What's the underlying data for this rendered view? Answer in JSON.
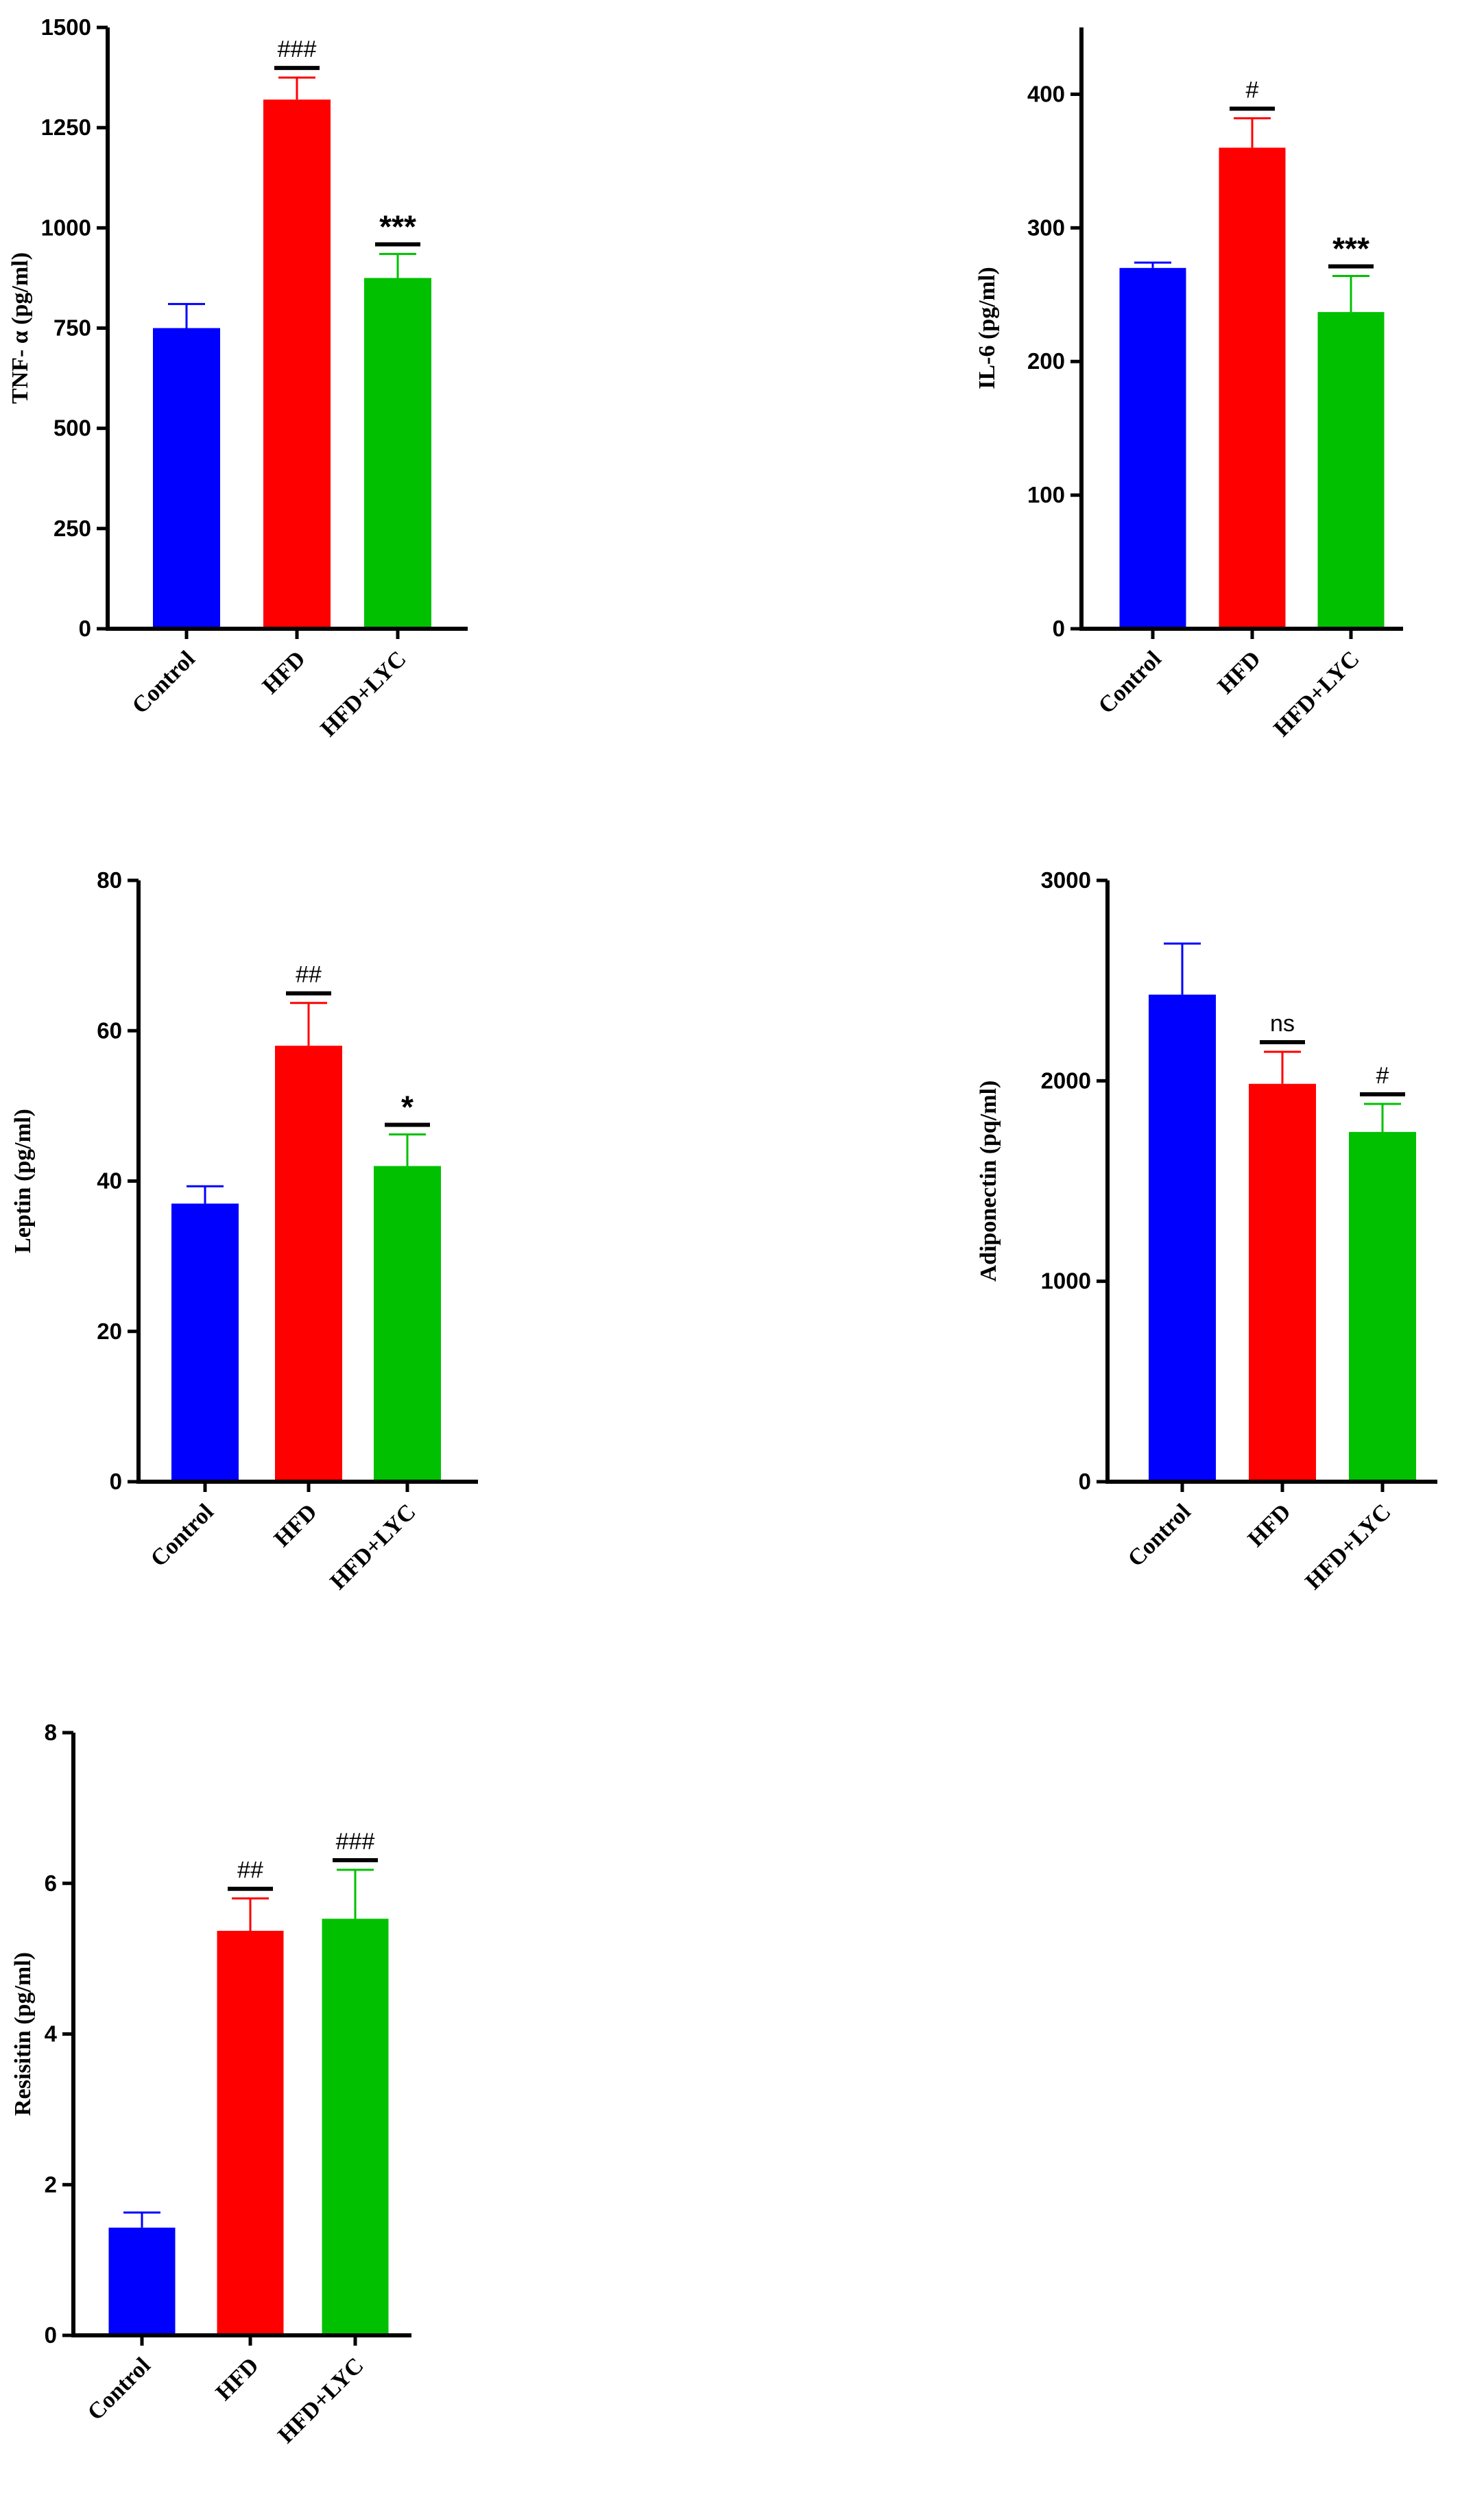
{
  "chart_data": [
    {
      "type": "bar",
      "title": "",
      "xlabel": "",
      "ylabel": "TNF- α (pg/ml)",
      "ylim": [
        0,
        1500
      ],
      "yticks": [
        0,
        250,
        500,
        750,
        1000,
        1250,
        1500
      ],
      "categories": [
        "Control",
        "HFD",
        "HFD+LYC"
      ],
      "values": [
        750,
        1320,
        875
      ],
      "errors": [
        60,
        55,
        60
      ],
      "annotations": [
        "",
        "###",
        "***"
      ],
      "colors": [
        "#0000ff",
        "#ff0000",
        "#00c000"
      ]
    },
    {
      "type": "bar",
      "title": "",
      "xlabel": "",
      "ylabel": "IL-6 (pg/ml)",
      "ylim": [
        0,
        450
      ],
      "yticks": [
        0,
        100,
        200,
        300,
        400
      ],
      "categories": [
        "Control",
        "HFD",
        "HFD+LYC"
      ],
      "values": [
        270,
        360,
        237
      ],
      "errors": [
        4,
        22,
        27
      ],
      "annotations": [
        "",
        "#",
        "***"
      ],
      "colors": [
        "#0000ff",
        "#ff0000",
        "#00c000"
      ]
    },
    {
      "type": "bar",
      "title": "",
      "xlabel": "",
      "ylabel": "Leptin (pg/ml)",
      "ylim": [
        0,
        80
      ],
      "yticks": [
        0,
        20,
        40,
        60,
        80
      ],
      "categories": [
        "Control",
        "HFD",
        "HFD+LYC"
      ],
      "values": [
        37,
        58,
        42
      ],
      "errors": [
        2.3,
        5.7,
        4.2
      ],
      "annotations": [
        "",
        "##",
        "*"
      ],
      "colors": [
        "#0000ff",
        "#ff0000",
        "#00c000"
      ]
    },
    {
      "type": "bar",
      "title": "",
      "xlabel": "",
      "ylabel": "Adiponectin (pq/ml)",
      "ylim": [
        0,
        3000
      ],
      "yticks": [
        0,
        1000,
        2000,
        3000
      ],
      "categories": [
        "Control",
        "HFD",
        "HFD+LYC"
      ],
      "values": [
        2430,
        1985,
        1745
      ],
      "errors": [
        255,
        160,
        140
      ],
      "annotations": [
        "",
        "ns",
        "#"
      ],
      "colors": [
        "#0000ff",
        "#ff0000",
        "#00c000"
      ]
    },
    {
      "type": "bar",
      "title": "",
      "xlabel": "",
      "ylabel": "Resisitin (pg/ml)",
      "ylim": [
        0,
        8
      ],
      "yticks": [
        0,
        2,
        4,
        6,
        8
      ],
      "categories": [
        "Control",
        "HFD",
        "HFD+LYC"
      ],
      "values": [
        1.43,
        5.37,
        5.53
      ],
      "errors": [
        0.2,
        0.43,
        0.65
      ],
      "annotations": [
        "",
        "##",
        "###"
      ],
      "colors": [
        "#0000ff",
        "#ff0000",
        "#00c000"
      ]
    }
  ]
}
